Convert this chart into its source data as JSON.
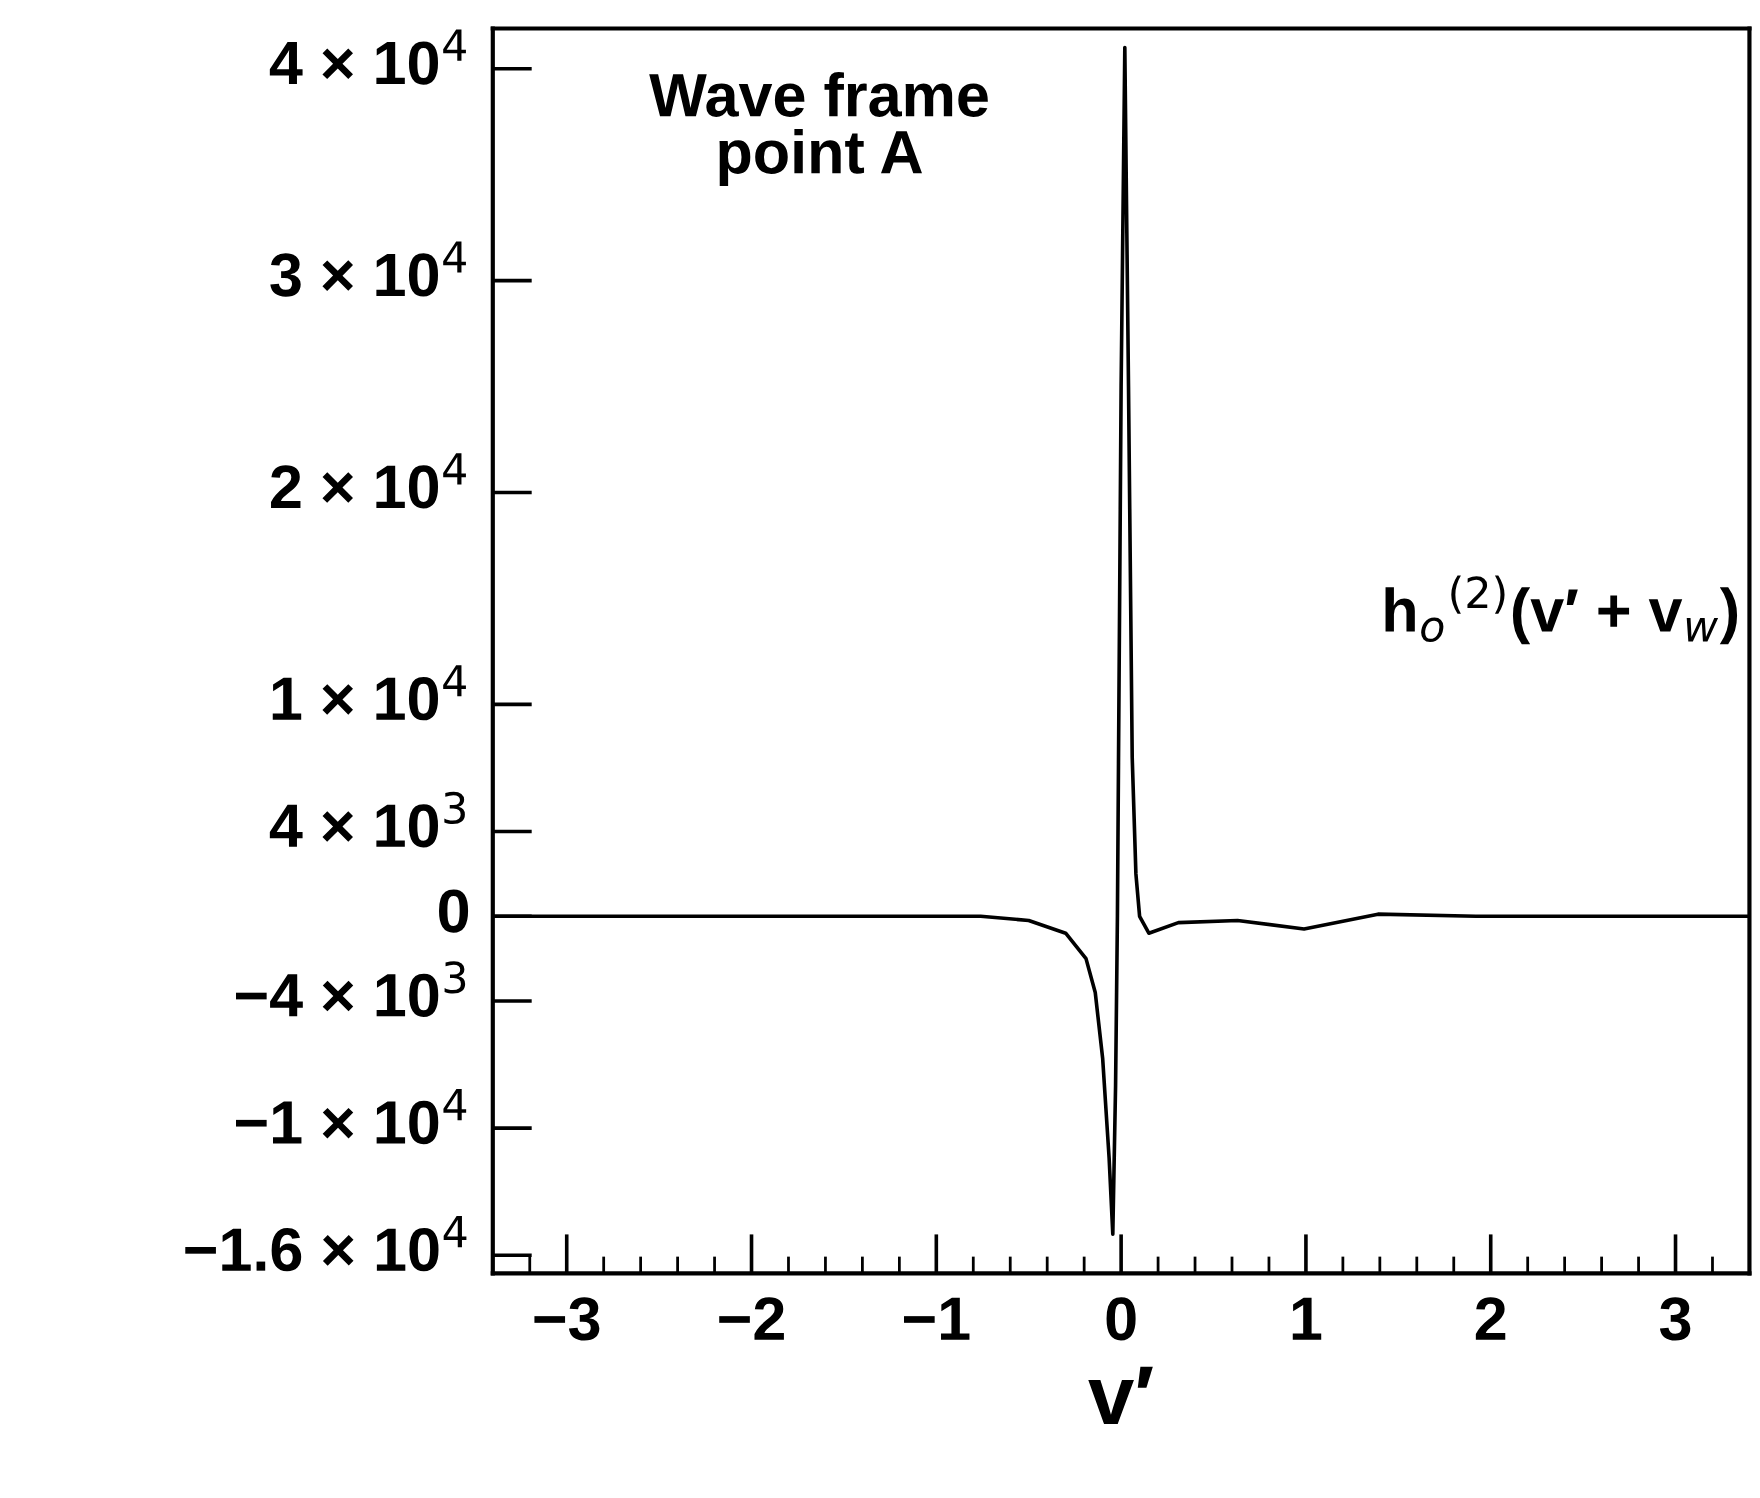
{
  "chart_data": {
    "type": "line",
    "xlabel": "v′",
    "annotations": [
      "Wave frame\npoint A"
    ],
    "series": [
      {
        "name": "h$_{o}$$^{(2)}$(v′ + v$_{w}$)",
        "color": "#000000",
        "x": [
          -3.4,
          -2.0,
          -1.0,
          -0.76,
          -0.5,
          -0.3,
          -0.19,
          -0.14,
          -0.1,
          -0.065,
          -0.045,
          -0.03,
          -0.02,
          0.0,
          0.02,
          0.04,
          0.06,
          0.08,
          0.1,
          0.15,
          0.31,
          0.63,
          0.99,
          1.39,
          1.92,
          2.5,
          3.4
        ],
        "values": [
          0,
          0,
          0,
          0,
          -200,
          -800,
          -2000,
          -3600,
          -6700,
          -11400,
          -15000,
          -8000,
          0,
          25000,
          41000,
          25000,
          7500,
          2000,
          0,
          -800,
          -300,
          -200,
          -600,
          100,
          0,
          0,
          0
        ]
      }
    ],
    "xlim": [
      -3.4,
      3.4
    ],
    "xticks": [
      {
        "value": -3,
        "label": "−3"
      },
      {
        "value": -2,
        "label": "−2"
      },
      {
        "value": -1,
        "label": "−1"
      },
      0,
      1,
      2,
      3
    ],
    "ylim": [
      -16850,
      41900
    ],
    "yticks": [
      {
        "value": -16000,
        "label": "−1.6 × 10$^{4}$"
      },
      {
        "value": -10000,
        "label": "−1 × 10$^{4}$"
      },
      {
        "value": -4000,
        "label": "−4 × 10$^{3}$"
      },
      0,
      {
        "value": 4000,
        "label": "4 × 10$^{3}$"
      },
      {
        "value": 10000,
        "label": "1 × 10$^{4}$"
      },
      {
        "value": 20000,
        "label": "2 × 10$^{4}$"
      },
      {
        "value": 30000,
        "label": "3 × 10$^{4}$"
      },
      {
        "value": 40000,
        "label": "4 × 10$^{4}$"
      }
    ],
    "grid": false,
    "legend": false,
    "marker": "none",
    "line_style": "solid"
  }
}
